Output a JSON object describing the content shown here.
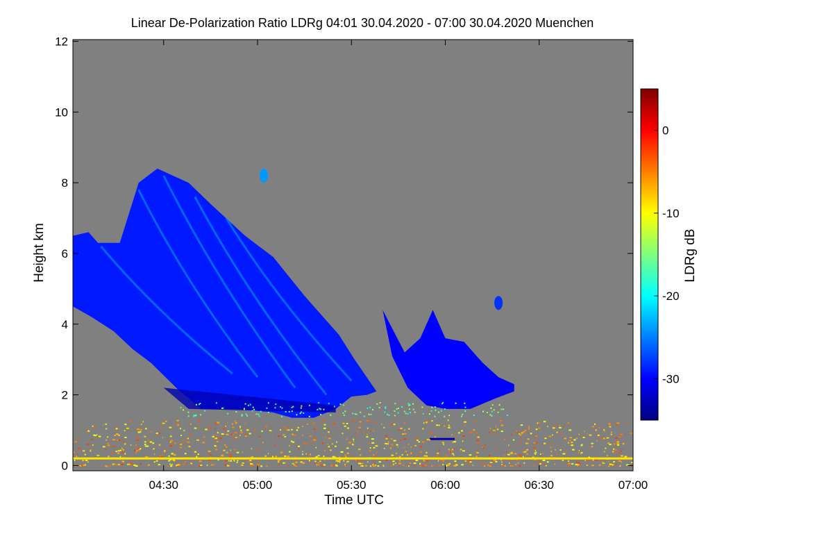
{
  "chart_data": {
    "type": "heatmap",
    "title": "Linear De-Polarization Ratio LDRg   04:01 30.04.2020 - 07:00 30.04.2020 Muenchen",
    "xlabel": "Time UTC",
    "ylabel": "Height km",
    "xlim_minutes_utc": [
      241,
      420
    ],
    "x_ticks": [
      {
        "minute": 270,
        "label": "04:30"
      },
      {
        "minute": 300,
        "label": "05:00"
      },
      {
        "minute": 330,
        "label": "05:30"
      },
      {
        "minute": 360,
        "label": "06:00"
      },
      {
        "minute": 390,
        "label": "06:30"
      },
      {
        "minute": 420,
        "label": "07:00"
      }
    ],
    "ylim_km": [
      -0.15,
      12.05
    ],
    "y_ticks": [
      {
        "value": 0,
        "label": "0"
      },
      {
        "value": 2,
        "label": "2"
      },
      {
        "value": 4,
        "label": "4"
      },
      {
        "value": 6,
        "label": "6"
      },
      {
        "value": 8,
        "label": "8"
      },
      {
        "value": 10,
        "label": "10"
      },
      {
        "value": 12,
        "label": "12"
      }
    ],
    "colorbar": {
      "label": "LDRg dB",
      "range_db": [
        -35,
        5
      ],
      "colors": [
        "#00007f",
        "#0000ff",
        "#007fff",
        "#00ffff",
        "#7fff7f",
        "#ffff00",
        "#ff7f00",
        "#ff0000",
        "#7f0000"
      ],
      "ticks": [
        {
          "value": 0,
          "label": "0"
        },
        {
          "value": -10,
          "label": "-10"
        },
        {
          "value": -20,
          "label": "-20"
        },
        {
          "value": -30,
          "label": "-30"
        }
      ]
    },
    "no_data_color": "#808080",
    "main_cloud": {
      "description_ldr_db": -29,
      "top_km": [
        [
          241,
          6.5
        ],
        [
          246,
          6.6
        ],
        [
          249,
          6.3
        ],
        [
          256,
          6.3
        ],
        [
          262,
          8.0
        ],
        [
          268,
          8.4
        ],
        [
          278,
          8.0
        ],
        [
          285,
          7.4
        ],
        [
          296,
          6.5
        ],
        [
          305,
          5.9
        ],
        [
          315,
          4.8
        ],
        [
          326,
          3.7
        ],
        [
          331,
          3.0
        ],
        [
          338,
          2.1
        ]
      ],
      "base_km": [
        [
          338,
          2.1
        ],
        [
          335,
          2.0
        ],
        [
          330,
          1.95
        ],
        [
          325,
          1.6
        ],
        [
          318,
          1.35
        ],
        [
          311,
          1.35
        ],
        [
          305,
          1.5
        ],
        [
          294,
          1.6
        ],
        [
          282,
          1.6
        ],
        [
          274,
          2.2
        ],
        [
          266,
          2.9
        ],
        [
          260,
          3.3
        ],
        [
          254,
          3.8
        ],
        [
          247,
          4.2
        ],
        [
          241,
          4.5
        ]
      ]
    },
    "secondary_cloud": {
      "description_ldr_db": -30,
      "top_km": [
        [
          340,
          4.4
        ],
        [
          347,
          3.2
        ],
        [
          352,
          3.6
        ],
        [
          356,
          4.4
        ],
        [
          360,
          3.6
        ],
        [
          366,
          3.5
        ],
        [
          372,
          2.9
        ],
        [
          377,
          2.5
        ],
        [
          382,
          2.3
        ]
      ],
      "base_km": [
        [
          382,
          2.1
        ],
        [
          376,
          1.9
        ],
        [
          368,
          1.6
        ],
        [
          360,
          1.6
        ],
        [
          354,
          1.7
        ],
        [
          348,
          2.2
        ],
        [
          343,
          3.1
        ]
      ]
    },
    "isolated_patches": [
      {
        "minute": 302,
        "height_km": 8.2,
        "ldr_db": -24
      },
      {
        "minute": 377,
        "height_km": 4.6,
        "ldr_db": -28
      }
    ],
    "thin_layer": {
      "start_minute": 355,
      "end_minute": 363,
      "height_km": 0.75,
      "ldr_db": -33
    },
    "near_ground_clutter": {
      "height_range_km": [
        0,
        1.3
      ],
      "ldr_db_range": [
        -12,
        -2
      ]
    }
  }
}
